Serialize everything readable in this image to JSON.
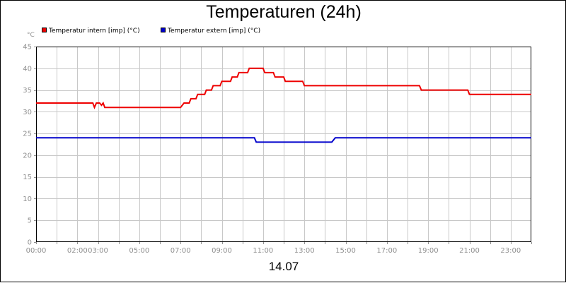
{
  "chart_data": {
    "type": "line",
    "title": "Temperaturen (24h)",
    "subtitle": "14.07",
    "ylabel": "°C",
    "ylim": [
      0,
      45
    ],
    "yticks": [
      0,
      5,
      10,
      15,
      20,
      25,
      30,
      35,
      40,
      45
    ],
    "xlim": [
      0,
      24
    ],
    "xticks": [
      {
        "t": 0,
        "label": "00:00"
      },
      {
        "t": 2,
        "label": "02:00"
      },
      {
        "t": 3,
        "label": "03:00"
      },
      {
        "t": 5,
        "label": "05:00"
      },
      {
        "t": 7,
        "label": "07:00"
      },
      {
        "t": 9,
        "label": "09:00"
      },
      {
        "t": 11,
        "label": "11:00"
      },
      {
        "t": 13,
        "label": "13:00"
      },
      {
        "t": 15,
        "label": "15:00"
      },
      {
        "t": 17,
        "label": "17:00"
      },
      {
        "t": 19,
        "label": "19:00"
      },
      {
        "t": 21,
        "label": "21:00"
      },
      {
        "t": 23,
        "label": "23:00"
      }
    ],
    "grid": true,
    "legend_position": "top-left",
    "series": [
      {
        "name": "Temperatur intern [imp] (°C)",
        "color": "#ee0000",
        "points": [
          [
            0.0,
            32
          ],
          [
            2.75,
            32
          ],
          [
            2.83,
            31
          ],
          [
            2.92,
            32
          ],
          [
            3.08,
            32
          ],
          [
            3.17,
            31.5
          ],
          [
            3.25,
            32
          ],
          [
            3.33,
            31
          ],
          [
            7.0,
            31
          ],
          [
            7.17,
            32
          ],
          [
            7.42,
            32
          ],
          [
            7.5,
            33
          ],
          [
            7.75,
            33
          ],
          [
            7.83,
            34
          ],
          [
            8.17,
            34
          ],
          [
            8.25,
            35
          ],
          [
            8.5,
            35
          ],
          [
            8.58,
            36
          ],
          [
            8.92,
            36
          ],
          [
            9.0,
            37
          ],
          [
            9.42,
            37
          ],
          [
            9.5,
            38
          ],
          [
            9.75,
            38
          ],
          [
            9.83,
            39
          ],
          [
            10.25,
            39
          ],
          [
            10.33,
            40
          ],
          [
            11.0,
            40
          ],
          [
            11.08,
            39
          ],
          [
            11.5,
            39
          ],
          [
            11.58,
            38
          ],
          [
            12.0,
            38
          ],
          [
            12.08,
            37
          ],
          [
            12.92,
            37
          ],
          [
            13.0,
            36
          ],
          [
            18.58,
            36
          ],
          [
            18.67,
            35
          ],
          [
            20.92,
            35
          ],
          [
            21.0,
            34
          ],
          [
            24.0,
            34
          ]
        ]
      },
      {
        "name": "Temperatur extern [imp] (°C)",
        "color": "#0000cc",
        "points": [
          [
            0.0,
            24
          ],
          [
            10.58,
            24
          ],
          [
            10.67,
            23
          ],
          [
            14.33,
            23
          ],
          [
            14.5,
            24
          ],
          [
            24.0,
            24
          ]
        ]
      }
    ]
  }
}
